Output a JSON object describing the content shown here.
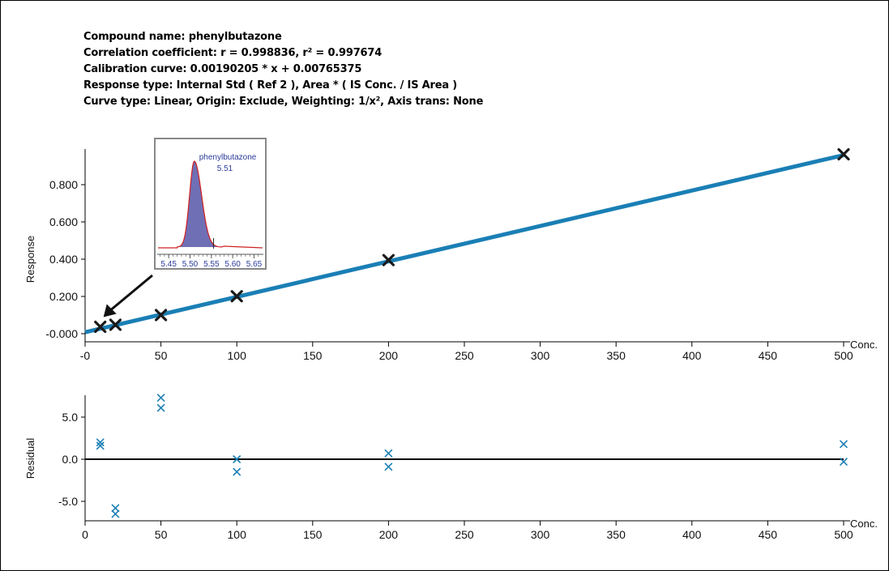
{
  "header": {
    "compound": "Compound name: phenylbutazone",
    "correlation": "Correlation coefficient: r = 0.998836, r² = 0.997674",
    "calibration": "Calibration curve: 0.00190205 * x + 0.00765375",
    "response_type": "Response type: Internal Std ( Ref 2 ), Area * ( IS Conc. / IS Area )",
    "curve_type": "Curve type: Linear, Origin: Exclude, Weighting: 1/x², Axis trans: None"
  },
  "colors": {
    "fit_line": "#1a7fb5",
    "residual_marker": "#1a7fb5",
    "calib_marker": "#1a1a1a",
    "peak_fill": "#6f6fb5",
    "peak_outline": "#d02020",
    "inset_axis_text": "#2a3a9a"
  },
  "chart_data": [
    {
      "type": "scatter",
      "name": "calibration",
      "fit": {
        "slope": 0.00190205,
        "intercept": 0.00765375
      },
      "points": [
        {
          "x": 10,
          "y": 0.037
        },
        {
          "x": 20,
          "y": 0.048
        },
        {
          "x": 50,
          "y": 0.1
        },
        {
          "x": 100,
          "y": 0.201
        },
        {
          "x": 200,
          "y": 0.395
        },
        {
          "x": 500,
          "y": 0.963
        }
      ],
      "xlabel": "Conc.",
      "ylabel": "Response",
      "xlim": [
        0,
        500
      ],
      "ylim": [
        -0.06,
        0.98
      ],
      "x_ticks": [
        0,
        50,
        100,
        150,
        200,
        250,
        300,
        350,
        400,
        450,
        500
      ],
      "x_tick_labels": [
        "-0",
        "50",
        "100",
        "150",
        "200",
        "250",
        "300",
        "350",
        "400",
        "450",
        "500"
      ],
      "y_ticks": [
        0,
        0.2,
        0.4,
        0.6,
        0.8
      ],
      "y_tick_labels": [
        "-0.000",
        "0.200",
        "0.400",
        "0.600",
        "0.800"
      ]
    },
    {
      "type": "scatter",
      "name": "residuals",
      "points": [
        {
          "x": 10,
          "y": 2.0
        },
        {
          "x": 10,
          "y": 1.6
        },
        {
          "x": 20,
          "y": -5.8
        },
        {
          "x": 20,
          "y": -6.5
        },
        {
          "x": 50,
          "y": 7.3
        },
        {
          "x": 50,
          "y": 6.1
        },
        {
          "x": 100,
          "y": 0.0
        },
        {
          "x": 100,
          "y": -1.5
        },
        {
          "x": 200,
          "y": 0.7
        },
        {
          "x": 200,
          "y": -0.9
        },
        {
          "x": 500,
          "y": 1.8
        },
        {
          "x": 500,
          "y": -0.3
        }
      ],
      "xlabel": "Conc.",
      "ylabel": "Residual",
      "xlim": [
        0,
        500
      ],
      "ylim": [
        -6.7,
        7.5
      ],
      "x_ticks": [
        0,
        50,
        100,
        150,
        200,
        250,
        300,
        350,
        400,
        450,
        500
      ],
      "x_tick_labels": [
        "0",
        "50",
        "100",
        "150",
        "200",
        "250",
        "300",
        "350",
        "400",
        "450",
        "500"
      ],
      "y_ticks": [
        -5,
        0,
        5
      ],
      "y_tick_labels": [
        "-5.0",
        "0.0",
        "5.0"
      ]
    }
  ],
  "inset": {
    "peak_label": "phenylbutazone",
    "peak_rt": "5.51",
    "x_ticks": [
      5.45,
      5.5,
      5.55,
      5.6,
      5.65
    ],
    "x_tick_labels": [
      "5.45",
      "5.50",
      "5.55",
      "5.60",
      "5.65"
    ],
    "xlim": [
      5.425,
      5.67
    ],
    "peak_apex": 5.51
  }
}
